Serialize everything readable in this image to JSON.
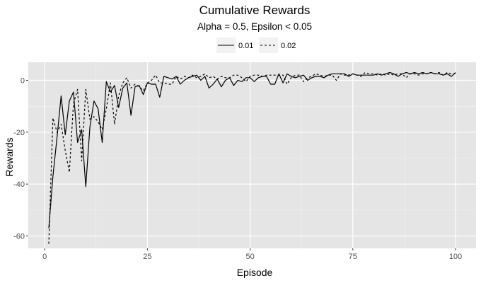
{
  "chart_data": {
    "type": "line",
    "title": "Cumulative Rewards",
    "subtitle": "Alpha = 0.5, Epsilon < 0.05",
    "xlabel": "Episode",
    "ylabel": "Rewards",
    "xlim": [
      1,
      100
    ],
    "ylim": [
      -65,
      3
    ],
    "x_ticks": [
      0,
      25,
      50,
      75,
      100
    ],
    "y_ticks": [
      -60,
      -40,
      -20,
      0
    ],
    "grid": true,
    "legend_position": "top",
    "background": "#e5e5e5",
    "series": [
      {
        "name": "0.01",
        "line_style": "solid",
        "color": "#000000",
        "x": [
          1,
          2,
          3,
          4,
          5,
          6,
          7,
          8,
          9,
          10,
          11,
          12,
          13,
          14,
          15,
          16,
          17,
          18,
          19,
          20,
          21,
          22,
          23,
          24,
          25,
          26,
          27,
          28,
          29,
          30,
          31,
          32,
          33,
          34,
          35,
          36,
          37,
          38,
          39,
          40,
          41,
          42,
          43,
          44,
          45,
          46,
          47,
          48,
          49,
          50,
          51,
          52,
          53,
          54,
          55,
          56,
          57,
          58,
          59,
          60,
          61,
          62,
          63,
          64,
          65,
          66,
          67,
          68,
          69,
          70,
          71,
          72,
          73,
          74,
          75,
          76,
          77,
          78,
          79,
          80,
          81,
          82,
          83,
          84,
          85,
          86,
          87,
          88,
          89,
          90,
          91,
          92,
          93,
          94,
          95,
          96,
          97,
          98,
          99,
          100
        ],
        "values": [
          -57,
          -37,
          -22,
          -6,
          -21,
          -8,
          -4.5,
          -24,
          -19,
          -41,
          -18,
          -8,
          -11,
          -24,
          -0.5,
          -4.5,
          -2,
          -10.5,
          -3,
          -1,
          -13.5,
          -2.5,
          -2,
          -5.5,
          -1,
          -1.5,
          -1.5,
          -6.5,
          1.5,
          1,
          0.5,
          1.5,
          -1.5,
          0,
          1,
          1.5,
          2,
          0,
          1.5,
          -3,
          -1.5,
          0.5,
          -2.5,
          0,
          1,
          -2,
          0,
          -0.5,
          1,
          1,
          -0.5,
          1,
          1.5,
          1.5,
          -1.5,
          -1.5,
          2.5,
          -1,
          2.5,
          1.5,
          1,
          1.5,
          2,
          0,
          1,
          1.5,
          1.5,
          1,
          2,
          2.5,
          2.5,
          2.5,
          2.5,
          1.5,
          2.5,
          2,
          2,
          2,
          2,
          2,
          2.5,
          2,
          2.5,
          3,
          2.5,
          1.5,
          2.5,
          3,
          2.5,
          3,
          2.5,
          3,
          2.5,
          3,
          2.5,
          2.5,
          2,
          2.5,
          1.5,
          3
        ]
      },
      {
        "name": "0.02",
        "line_style": "dashed",
        "color": "#000000",
        "x": [
          1,
          2,
          3,
          4,
          5,
          6,
          7,
          8,
          9,
          10,
          11,
          12,
          13,
          14,
          15,
          16,
          17,
          18,
          19,
          20,
          21,
          22,
          23,
          24,
          25,
          26,
          27,
          28,
          29,
          30,
          31,
          32,
          33,
          34,
          35,
          36,
          37,
          38,
          39,
          40,
          41,
          42,
          43,
          44,
          45,
          46,
          47,
          48,
          49,
          50,
          51,
          52,
          53,
          54,
          55,
          56,
          57,
          58,
          59,
          60,
          61,
          62,
          63,
          64,
          65,
          66,
          67,
          68,
          69,
          70,
          71,
          72,
          73,
          74,
          75,
          76,
          77,
          78,
          79,
          80,
          81,
          82,
          83,
          84,
          85,
          86,
          87,
          88,
          89,
          90,
          91,
          92,
          93,
          94,
          95,
          96,
          97,
          98,
          99,
          100
        ],
        "values": [
          -63,
          -14.5,
          -20,
          -17,
          -27,
          -35.5,
          -9,
          -3.5,
          -31,
          -3.5,
          -15,
          -14,
          -16,
          -19,
          -11,
          -1,
          -17,
          -6,
          -1,
          1,
          -3,
          -1.5,
          -2.5,
          -4,
          -1,
          0,
          2,
          -1,
          -1,
          -1.5,
          -1.5,
          1.5,
          0.5,
          1.5,
          1,
          2,
          1,
          1.5,
          2.5,
          1,
          1.5,
          0.5,
          1.5,
          1,
          1,
          2,
          2,
          1,
          -0.5,
          1.5,
          2,
          2,
          1.5,
          2,
          2,
          2,
          2,
          2,
          -1.5,
          1,
          2,
          2,
          -0.5,
          1,
          1.5,
          2.5,
          2,
          1.5,
          2,
          2,
          0,
          2.5,
          2,
          2,
          2.5,
          2,
          1.5,
          3,
          2.5,
          2.5,
          2,
          2.5,
          2,
          2.5,
          2,
          2.5,
          2.5,
          1,
          2.5,
          2.5,
          2,
          2.5,
          2.5,
          3,
          2.5,
          3,
          2,
          3,
          2.5,
          2.5
        ]
      }
    ]
  }
}
